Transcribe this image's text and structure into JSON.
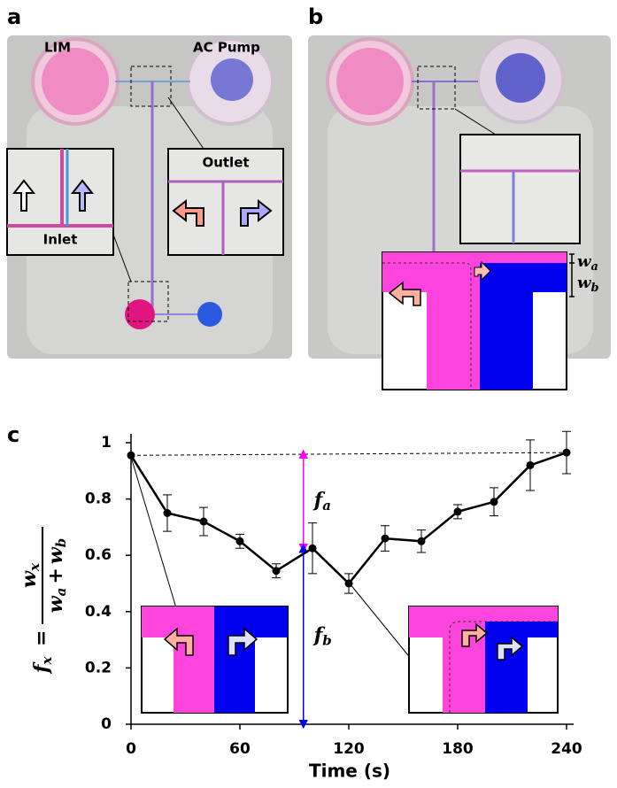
{
  "panel_a": {
    "label": "a",
    "left_reservoir": "LIM",
    "right_reservoir": "AC Pump",
    "inset_left": "Inlet",
    "inset_right": "Outlet"
  },
  "panel_b": {
    "label": "b",
    "width_a": {
      "symbol": "w",
      "sub": "a"
    },
    "width_b": {
      "symbol": "w",
      "sub": "b"
    }
  },
  "chart_data": {
    "type": "line",
    "panel_label": "c",
    "x_label": "Time (s)",
    "y_label": {
      "f": "f",
      "f_sub": "x",
      "equals": "=",
      "num": "w",
      "num_sub": "x",
      "den1": "w",
      "den1_sub": "a",
      "plus": "+",
      "den2": "w",
      "den2_sub": "b"
    },
    "x": [
      0,
      20,
      40,
      60,
      80,
      100,
      120,
      140,
      160,
      180,
      200,
      220,
      240
    ],
    "series": [
      {
        "color": "#000000",
        "values": [
          0.955,
          0.75,
          0.72,
          0.65,
          0.545,
          0.625,
          0.5,
          0.66,
          0.65,
          0.755,
          0.79,
          0.92,
          0.965
        ],
        "errors": [
          0,
          0.065,
          0.05,
          0.025,
          0.025,
          0.09,
          0.035,
          0.045,
          0.04,
          0.025,
          0.05,
          0.09,
          0.075
        ]
      }
    ],
    "xlim": [
      0,
      240
    ],
    "xticks": [
      0,
      60,
      120,
      180,
      240
    ],
    "ylim": [
      0,
      1
    ],
    "yticks": [
      0,
      0.2,
      0.4,
      0.6,
      0.8,
      1
    ],
    "reference_line": {
      "style": "dashed",
      "values": [
        0.955,
        0.965
      ]
    },
    "annotations": [
      {
        "symbol": "f",
        "sub": "a",
        "from": 0.96,
        "to": 0.625,
        "color": "#ff00ff"
      },
      {
        "symbol": "f",
        "sub": "b",
        "from": 0.625,
        "to": 0,
        "color": "#0000ff"
      }
    ]
  }
}
